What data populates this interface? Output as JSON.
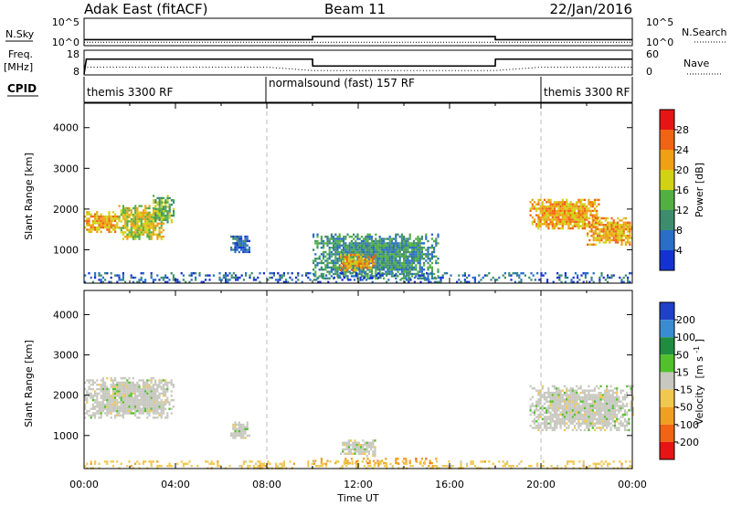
{
  "header": {
    "station": "Adak East (fitACF)",
    "beam": "Beam 11",
    "date": "22/Jan/2016"
  },
  "chart_data": [
    {
      "type": "line",
      "panel": "noise",
      "left_label": "N.Sky",
      "right_label": "N.Search",
      "yticks_left": [
        "10^5",
        "10^0"
      ],
      "yticks_right": [
        "10^5",
        "10^0"
      ],
      "series": [
        {
          "name": "N.Sky",
          "x": [
            0,
            2,
            4,
            6,
            8,
            10,
            12,
            14,
            16,
            18,
            20,
            22,
            24
          ],
          "values": [
            1.0,
            1.0,
            1.0,
            1.0,
            1.0,
            1.6,
            1.6,
            1.6,
            1.6,
            1.0,
            1.0,
            1.0,
            1.0
          ]
        },
        {
          "name": "N.Search",
          "x": [
            0,
            2,
            4,
            6,
            8,
            10,
            12,
            14,
            16,
            18,
            20,
            22,
            24
          ],
          "values": [
            0.5,
            0.5,
            0.5,
            0.5,
            0.5,
            0.5,
            0.5,
            0.5,
            0.5,
            0.5,
            0.5,
            0.5,
            0.5
          ]
        }
      ],
      "ylim": [
        0,
        5
      ]
    },
    {
      "type": "line",
      "panel": "frequency",
      "left_label": "Freq.",
      "left_unit": "[MHz]",
      "right_label": "Nave",
      "yticks_left": [
        "18",
        "8"
      ],
      "yticks_right": [
        "60",
        "0"
      ],
      "series": [
        {
          "name": "Freq.",
          "x": [
            0,
            0.1,
            8,
            10,
            10.01,
            18,
            18.01,
            24
          ],
          "values": [
            8,
            14.5,
            14.5,
            14.5,
            11.5,
            11.5,
            14.5,
            14.5
          ]
        },
        {
          "name": "Nave",
          "x": [
            0,
            8,
            10,
            18,
            20,
            24
          ],
          "values": [
            11,
            11,
            9.5,
            9.5,
            11,
            11
          ]
        }
      ],
      "ylim": [
        8,
        18
      ]
    },
    {
      "type": "table",
      "panel": "cpid",
      "label": "CPID",
      "segments": [
        {
          "start": 0,
          "end": 8,
          "name": "themis 3300 RF"
        },
        {
          "start": 8,
          "end": 20,
          "name": "normalsound (fast) 157 RF"
        },
        {
          "start": 20,
          "end": 24,
          "name": "themis 3300 RF"
        }
      ]
    },
    {
      "type": "heatmap",
      "panel": "power",
      "ylabel": "Slant Range [km]",
      "yticks": [
        1000,
        2000,
        3000,
        4000
      ],
      "ylim": [
        180,
        4600
      ],
      "colorbar_label": "Power [dB]",
      "colorbar_ticks": [
        "4",
        "8",
        "12",
        "16",
        "20",
        "24",
        "28"
      ],
      "colorbar_colors": [
        "#1432d2",
        "#2a6ec8",
        "#3e8c6e",
        "#52b043",
        "#d2d214",
        "#f0a014",
        "#f06414",
        "#e61414"
      ],
      "regions": [
        {
          "x0": 0.0,
          "x1": 1.5,
          "y0": 1450,
          "y1": 1950,
          "level": 5
        },
        {
          "x0": 1.5,
          "x1": 3.5,
          "y0": 1250,
          "y1": 2100,
          "level": 4
        },
        {
          "x0": 3.0,
          "x1": 3.9,
          "y0": 1700,
          "y1": 2350,
          "level": 3
        },
        {
          "x0": 6.4,
          "x1": 7.2,
          "y0": 950,
          "y1": 1350,
          "level": 1
        },
        {
          "x0": 10.0,
          "x1": 15.5,
          "y0": 300,
          "y1": 1400,
          "level": 2
        },
        {
          "x0": 11.2,
          "x1": 12.7,
          "y0": 500,
          "y1": 900,
          "level": 5
        },
        {
          "x0": 19.5,
          "x1": 22.5,
          "y0": 1500,
          "y1": 2250,
          "level": 5
        },
        {
          "x0": 22.0,
          "x1": 24.0,
          "y0": 1150,
          "y1": 1800,
          "level": 5
        },
        {
          "x0": 0.0,
          "x1": 24.0,
          "y0": 200,
          "y1": 450,
          "level": 1
        }
      ]
    },
    {
      "type": "heatmap",
      "panel": "velocity",
      "ylabel": "Slant Range [km]",
      "yticks": [
        1000,
        2000,
        3000,
        4000
      ],
      "ylim": [
        180,
        4600
      ],
      "xlabel": "Time UT",
      "xticks": [
        "00:00",
        "04:00",
        "08:00",
        "12:00",
        "16:00",
        "20:00",
        "00:00"
      ],
      "xlim": [
        0,
        24
      ],
      "colorbar_label": "Velocity",
      "colorbar_unit_main": "[m s",
      "colorbar_unit_exp": "-1",
      "colorbar_unit_end": "]",
      "colorbar_ticks": [
        "200",
        "100",
        "50",
        "15",
        "-15",
        "-50",
        "-100",
        "-200"
      ],
      "colorbar_colors": [
        "#2040c8",
        "#3a8cd2",
        "#208c40",
        "#52c02c",
        "#c8c8c0",
        "#f0c850",
        "#f0a020",
        "#f06414",
        "#e61414"
      ],
      "regions": [
        {
          "x0": 0.0,
          "x1": 3.9,
          "y0": 1450,
          "y1": 2450,
          "level": 4
        },
        {
          "x0": 6.4,
          "x1": 7.2,
          "y0": 950,
          "y1": 1350,
          "level": 4
        },
        {
          "x0": 11.2,
          "x1": 12.7,
          "y0": 500,
          "y1": 900,
          "level": 4
        },
        {
          "x0": 10.0,
          "x1": 15.5,
          "y0": 300,
          "y1": 450,
          "level": 6
        },
        {
          "x0": 19.5,
          "x1": 24.0,
          "y0": 1150,
          "y1": 2250,
          "level": 4
        },
        {
          "x0": 0.0,
          "x1": 24.0,
          "y0": 200,
          "y1": 380,
          "level": 5
        }
      ]
    }
  ]
}
